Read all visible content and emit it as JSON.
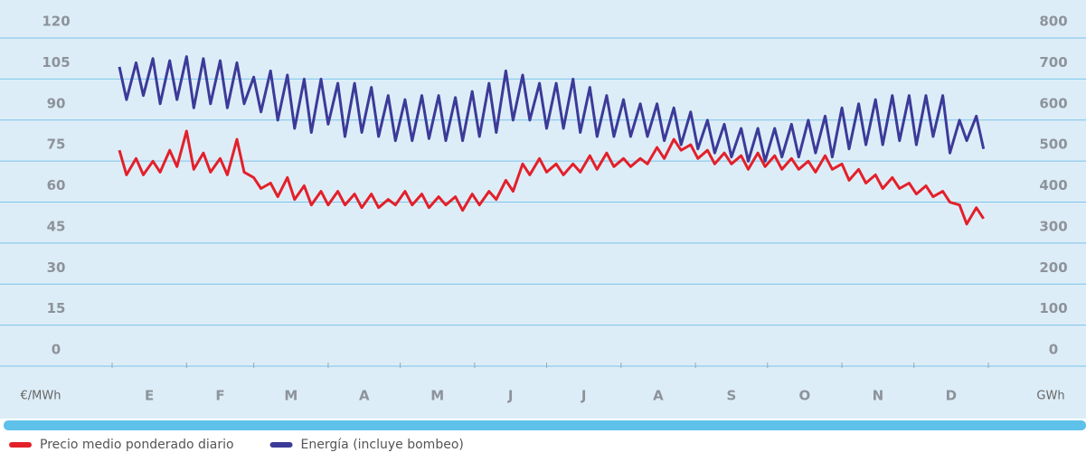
{
  "chart_data": {
    "type": "line",
    "x": [
      3,
      6,
      10,
      13,
      17,
      20,
      24,
      27,
      31,
      34,
      38,
      41,
      45,
      48,
      52,
      55,
      59,
      62,
      66,
      69,
      73,
      76,
      80,
      83,
      87,
      90,
      94,
      97,
      101,
      104,
      108,
      111,
      115,
      118,
      122,
      125,
      129,
      132,
      136,
      139,
      143,
      146,
      150,
      153,
      157,
      160,
      164,
      167,
      171,
      174,
      178,
      181,
      185,
      188,
      192,
      195,
      199,
      202,
      206,
      209,
      213,
      216,
      220,
      223,
      227,
      230,
      234,
      237,
      241,
      244,
      248,
      251,
      255,
      258,
      262,
      265,
      269,
      272,
      276,
      279,
      283,
      286,
      290,
      293,
      297,
      300,
      304,
      307,
      311,
      314,
      318,
      321,
      325,
      328,
      332,
      335,
      339,
      342,
      346,
      349,
      353,
      356,
      360,
      363
    ],
    "xlim": [
      0,
      365
    ],
    "xticks": [
      0,
      31,
      59,
      90,
      120,
      151,
      181,
      212,
      243,
      273,
      304,
      334,
      365
    ],
    "categories": [
      "E",
      "F",
      "M",
      "A",
      "M",
      "J",
      "J",
      "A",
      "S",
      "O",
      "N",
      "D"
    ],
    "ylim": [
      0,
      120
    ],
    "yticks": [
      0,
      15,
      30,
      45,
      60,
      75,
      90,
      105,
      120
    ],
    "y2lim": [
      0,
      800
    ],
    "y2ticks": [
      0,
      100,
      200,
      300,
      400,
      500,
      600,
      700,
      800
    ],
    "ylabel": "€/MWh",
    "y2label": "GWh",
    "grid": true,
    "series": [
      {
        "name": "Precio medio ponderado diario",
        "color": "#e3202a",
        "values": [
          73,
          64,
          70,
          64,
          69,
          65,
          73,
          67,
          80,
          66,
          72,
          65,
          70,
          64,
          77,
          65,
          63,
          59,
          61,
          56,
          63,
          55,
          60,
          53,
          58,
          53,
          58,
          53,
          57,
          52,
          57,
          52,
          55,
          53,
          58,
          53,
          57,
          52,
          56,
          53,
          56,
          51,
          57,
          53,
          58,
          55,
          62,
          58,
          68,
          64,
          70,
          65,
          68,
          64,
          68,
          65,
          71,
          66,
          72,
          67,
          70,
          67,
          70,
          68,
          74,
          70,
          77,
          73,
          75,
          70,
          73,
          68,
          72,
          68,
          71,
          66,
          72,
          67,
          71,
          66,
          70,
          66,
          69,
          65,
          71,
          66,
          68,
          62,
          66,
          61,
          64,
          59,
          63,
          59,
          61,
          57,
          60,
          56,
          58,
          54,
          53,
          46,
          52,
          48
        ]
      },
      {
        "name": "Energía (incluye bombeo)",
        "color": "#3c3a98",
        "axis": "y2",
        "values": [
          690,
          610,
          700,
          620,
          710,
          600,
          705,
          610,
          715,
          590,
          710,
          600,
          705,
          590,
          700,
          600,
          665,
          580,
          680,
          560,
          670,
          540,
          660,
          530,
          660,
          550,
          650,
          520,
          650,
          530,
          640,
          520,
          620,
          510,
          610,
          510,
          620,
          515,
          620,
          510,
          615,
          510,
          630,
          520,
          650,
          530,
          680,
          560,
          670,
          560,
          650,
          540,
          650,
          540,
          660,
          530,
          640,
          520,
          620,
          520,
          610,
          520,
          600,
          520,
          600,
          510,
          590,
          500,
          580,
          490,
          560,
          480,
          550,
          470,
          540,
          460,
          540,
          460,
          540,
          470,
          550,
          470,
          560,
          480,
          570,
          470,
          590,
          490,
          600,
          500,
          610,
          500,
          620,
          510,
          620,
          500,
          620,
          520,
          620,
          480,
          560,
          510,
          570,
          490
        ]
      }
    ]
  }
}
